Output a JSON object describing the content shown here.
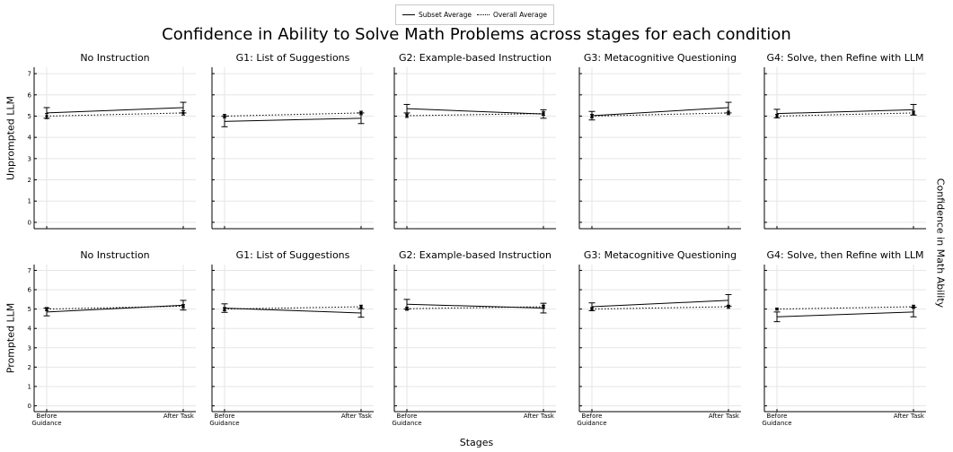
{
  "figure": {
    "title": "Confidence in Ability to Solve Math Problems across stages for each condition",
    "xlabel": "Stages",
    "right_label": "Confidence in Math Ability",
    "row_labels": [
      "Unprompted LLM",
      "Prompted LLM"
    ],
    "legend": {
      "solid_label": "Subset Average",
      "dotted_label": "Overall Average",
      "placement": "top-center"
    }
  },
  "chart_data": {
    "type": "line",
    "categories": [
      "Before\nGuidance",
      "After Task"
    ],
    "ylim": [
      -0.3,
      7.3
    ],
    "yticks": [
      0,
      1,
      2,
      3,
      4,
      5,
      6,
      7
    ],
    "grid": true,
    "series_styles": {
      "Subset Average": "solid",
      "Overall Average": "dotted"
    },
    "panels": [
      {
        "row": 0,
        "col": 0,
        "title": "No Instruction",
        "subset": [
          5.15,
          5.4
        ],
        "subset_err": [
          0.25,
          0.25
        ],
        "overall": [
          5.0,
          5.15
        ],
        "overall_err": [
          0.12,
          0.1
        ]
      },
      {
        "row": 0,
        "col": 1,
        "title": "G1: List of Suggestions",
        "subset": [
          4.75,
          4.9
        ],
        "subset_err": [
          0.25,
          0.25
        ],
        "overall": [
          5.0,
          5.15
        ],
        "overall_err": [
          0.08,
          0.08
        ]
      },
      {
        "row": 0,
        "col": 2,
        "title": "G2: Example-based Instruction",
        "subset": [
          5.35,
          5.1
        ],
        "subset_err": [
          0.2,
          0.2
        ],
        "overall": [
          5.02,
          5.12
        ],
        "overall_err": [
          0.08,
          0.08
        ]
      },
      {
        "row": 0,
        "col": 3,
        "title": "G3: Metacognitive Questioning",
        "subset": [
          5.02,
          5.4
        ],
        "subset_err": [
          0.2,
          0.25
        ],
        "overall": [
          5.0,
          5.15
        ],
        "overall_err": [
          0.08,
          0.08
        ]
      },
      {
        "row": 0,
        "col": 4,
        "title": "G4: Solve, then Refine with LLM",
        "subset": [
          5.12,
          5.3
        ],
        "subset_err": [
          0.2,
          0.25
        ],
        "overall": [
          5.0,
          5.15
        ],
        "overall_err": [
          0.08,
          0.08
        ]
      },
      {
        "row": 1,
        "col": 0,
        "title": "No Instruction",
        "subset": [
          4.85,
          5.2
        ],
        "subset_err": [
          0.2,
          0.25
        ],
        "overall": [
          5.0,
          5.15
        ],
        "overall_err": [
          0.08,
          0.08
        ]
      },
      {
        "row": 1,
        "col": 1,
        "title": "G1: List of Suggestions",
        "subset": [
          5.05,
          4.8
        ],
        "subset_err": [
          0.22,
          0.22
        ],
        "overall": [
          5.0,
          5.12
        ],
        "overall_err": [
          0.08,
          0.08
        ]
      },
      {
        "row": 1,
        "col": 2,
        "title": "G2: Example-based Instruction",
        "subset": [
          5.25,
          5.05
        ],
        "subset_err": [
          0.25,
          0.25
        ],
        "overall": [
          5.02,
          5.12
        ],
        "overall_err": [
          0.08,
          0.08
        ]
      },
      {
        "row": 1,
        "col": 3,
        "title": "G3: Metacognitive Questioning",
        "subset": [
          5.12,
          5.45
        ],
        "subset_err": [
          0.2,
          0.3
        ],
        "overall": [
          5.0,
          5.12
        ],
        "overall_err": [
          0.08,
          0.08
        ]
      },
      {
        "row": 1,
        "col": 4,
        "title": "G4: Solve, then Refine with LLM",
        "subset": [
          4.6,
          4.85
        ],
        "subset_err": [
          0.25,
          0.25
        ],
        "overall": [
          5.0,
          5.12
        ],
        "overall_err": [
          0.05,
          0.08
        ]
      }
    ]
  }
}
